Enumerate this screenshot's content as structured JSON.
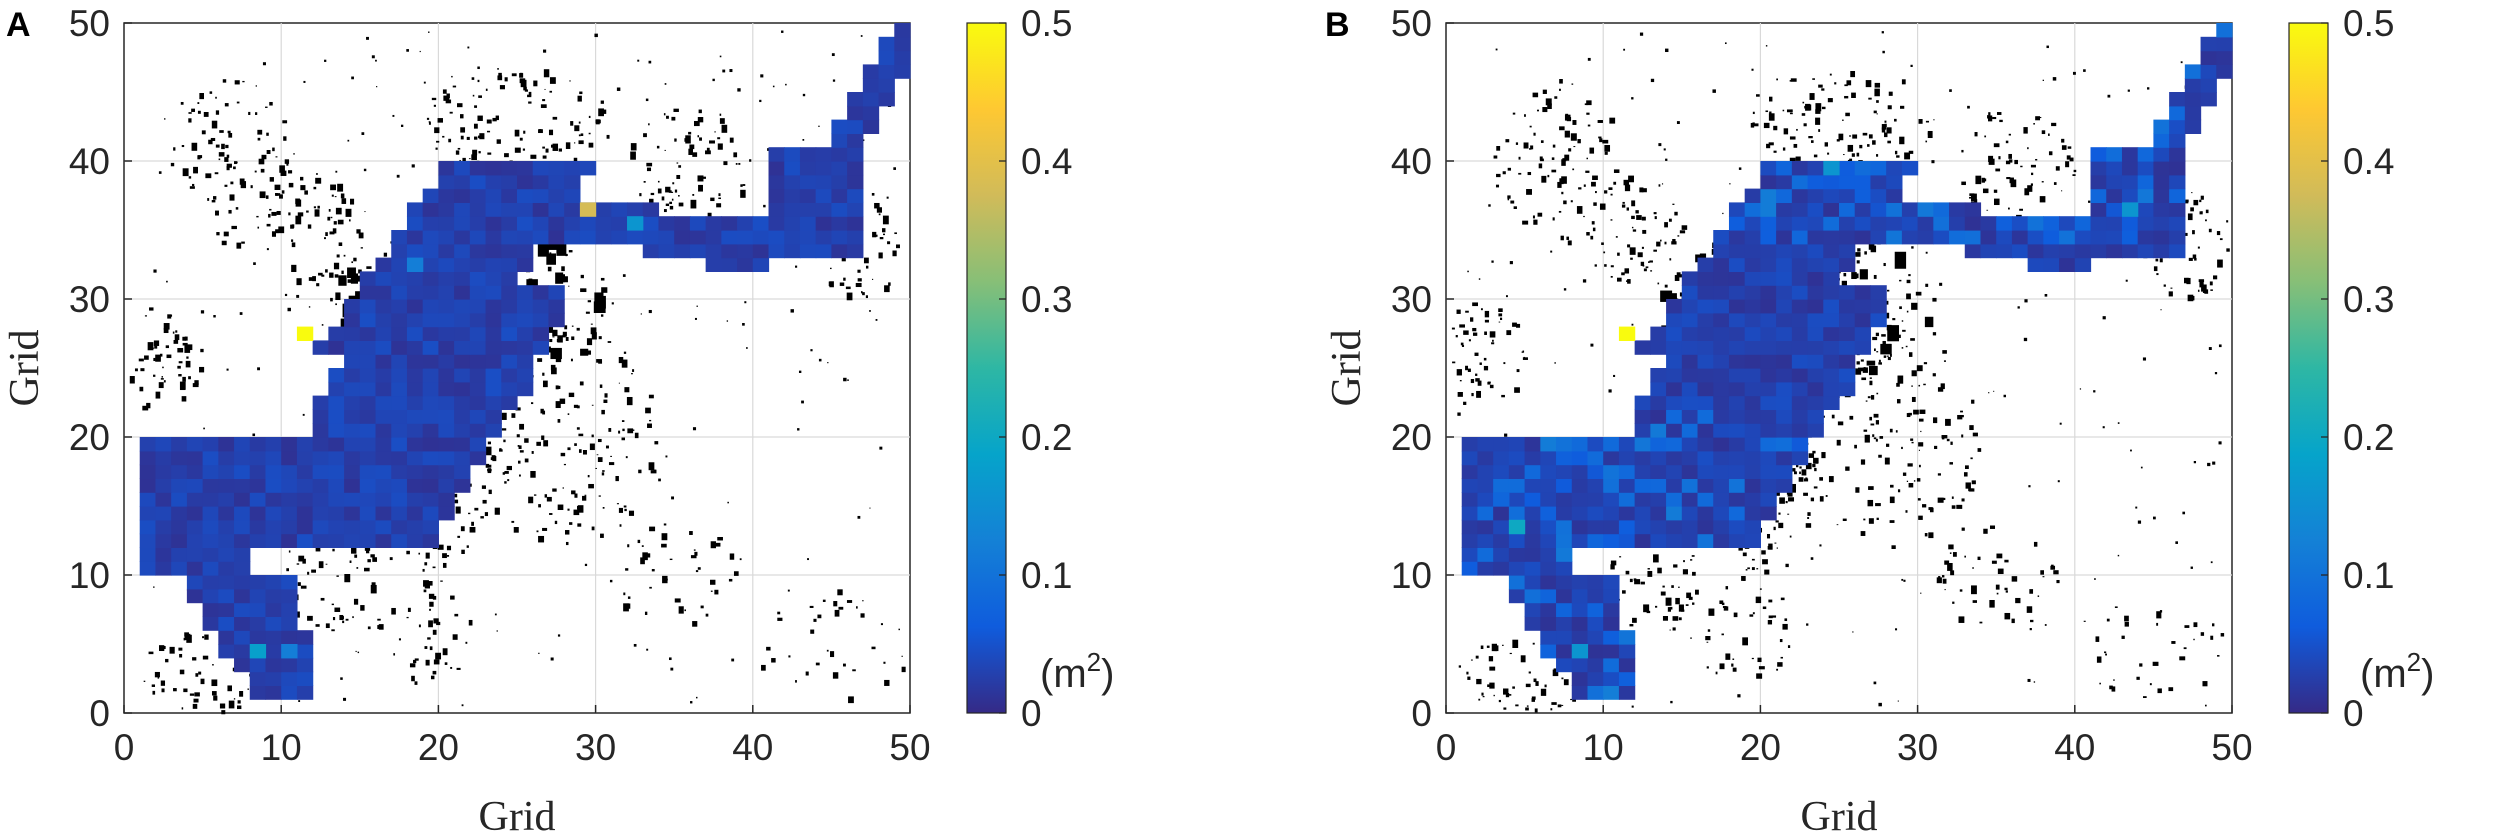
{
  "chart_data": [
    {
      "panel": "A",
      "type": "heatmap",
      "xlabel": "Grid",
      "ylabel": "Grid",
      "xlim": [
        0,
        50
      ],
      "ylim": [
        0,
        50
      ],
      "xticks": [
        "0",
        "10",
        "20",
        "30",
        "40",
        "50"
      ],
      "yticks": [
        "0",
        "10",
        "20",
        "30",
        "40",
        "50"
      ],
      "grid": true,
      "colorbar": {
        "range": [
          0,
          0.5
        ],
        "ticks": [
          "0",
          "0.1",
          "0.2",
          "0.3",
          "0.4",
          "0.5"
        ],
        "unit": "(m",
        "unit_sup": "2",
        "unit_close": ")",
        "colormap": "parula"
      },
      "cells_approx": [
        {
          "x": 8,
          "y": 4,
          "value": 0.18
        },
        {
          "x": 10,
          "y": 4,
          "value": 0.12
        },
        {
          "x": 11,
          "y": 27,
          "value": 0.5
        },
        {
          "x": 29,
          "y": 36,
          "value": 0.38
        },
        {
          "x": 32,
          "y": 35,
          "value": 0.16
        },
        {
          "x": 18,
          "y": 32,
          "value": 0.12
        }
      ]
    },
    {
      "panel": "B",
      "type": "heatmap",
      "xlabel": "Grid",
      "ylabel": "Grid",
      "xlim": [
        0,
        50
      ],
      "ylim": [
        0,
        50
      ],
      "xticks": [
        "0",
        "10",
        "20",
        "30",
        "40",
        "50"
      ],
      "yticks": [
        "0",
        "10",
        "20",
        "30",
        "40",
        "50"
      ],
      "grid": true,
      "colorbar": {
        "range": [
          0,
          0.5
        ],
        "ticks": [
          "0",
          "0.1",
          "0.2",
          "0.3",
          "0.4",
          "0.5"
        ],
        "unit": "(m",
        "unit_sup": "2",
        "unit_close": ")",
        "colormap": "parula"
      },
      "cells_approx": [
        {
          "x": 4,
          "y": 13,
          "value": 0.2
        },
        {
          "x": 8,
          "y": 4,
          "value": 0.16
        },
        {
          "x": 11,
          "y": 27,
          "value": 0.5
        },
        {
          "x": 24,
          "y": 39,
          "value": 0.16
        },
        {
          "x": 43,
          "y": 36,
          "value": 0.16
        },
        {
          "x": 3,
          "y": 15,
          "value": 0.08
        }
      ]
    }
  ]
}
